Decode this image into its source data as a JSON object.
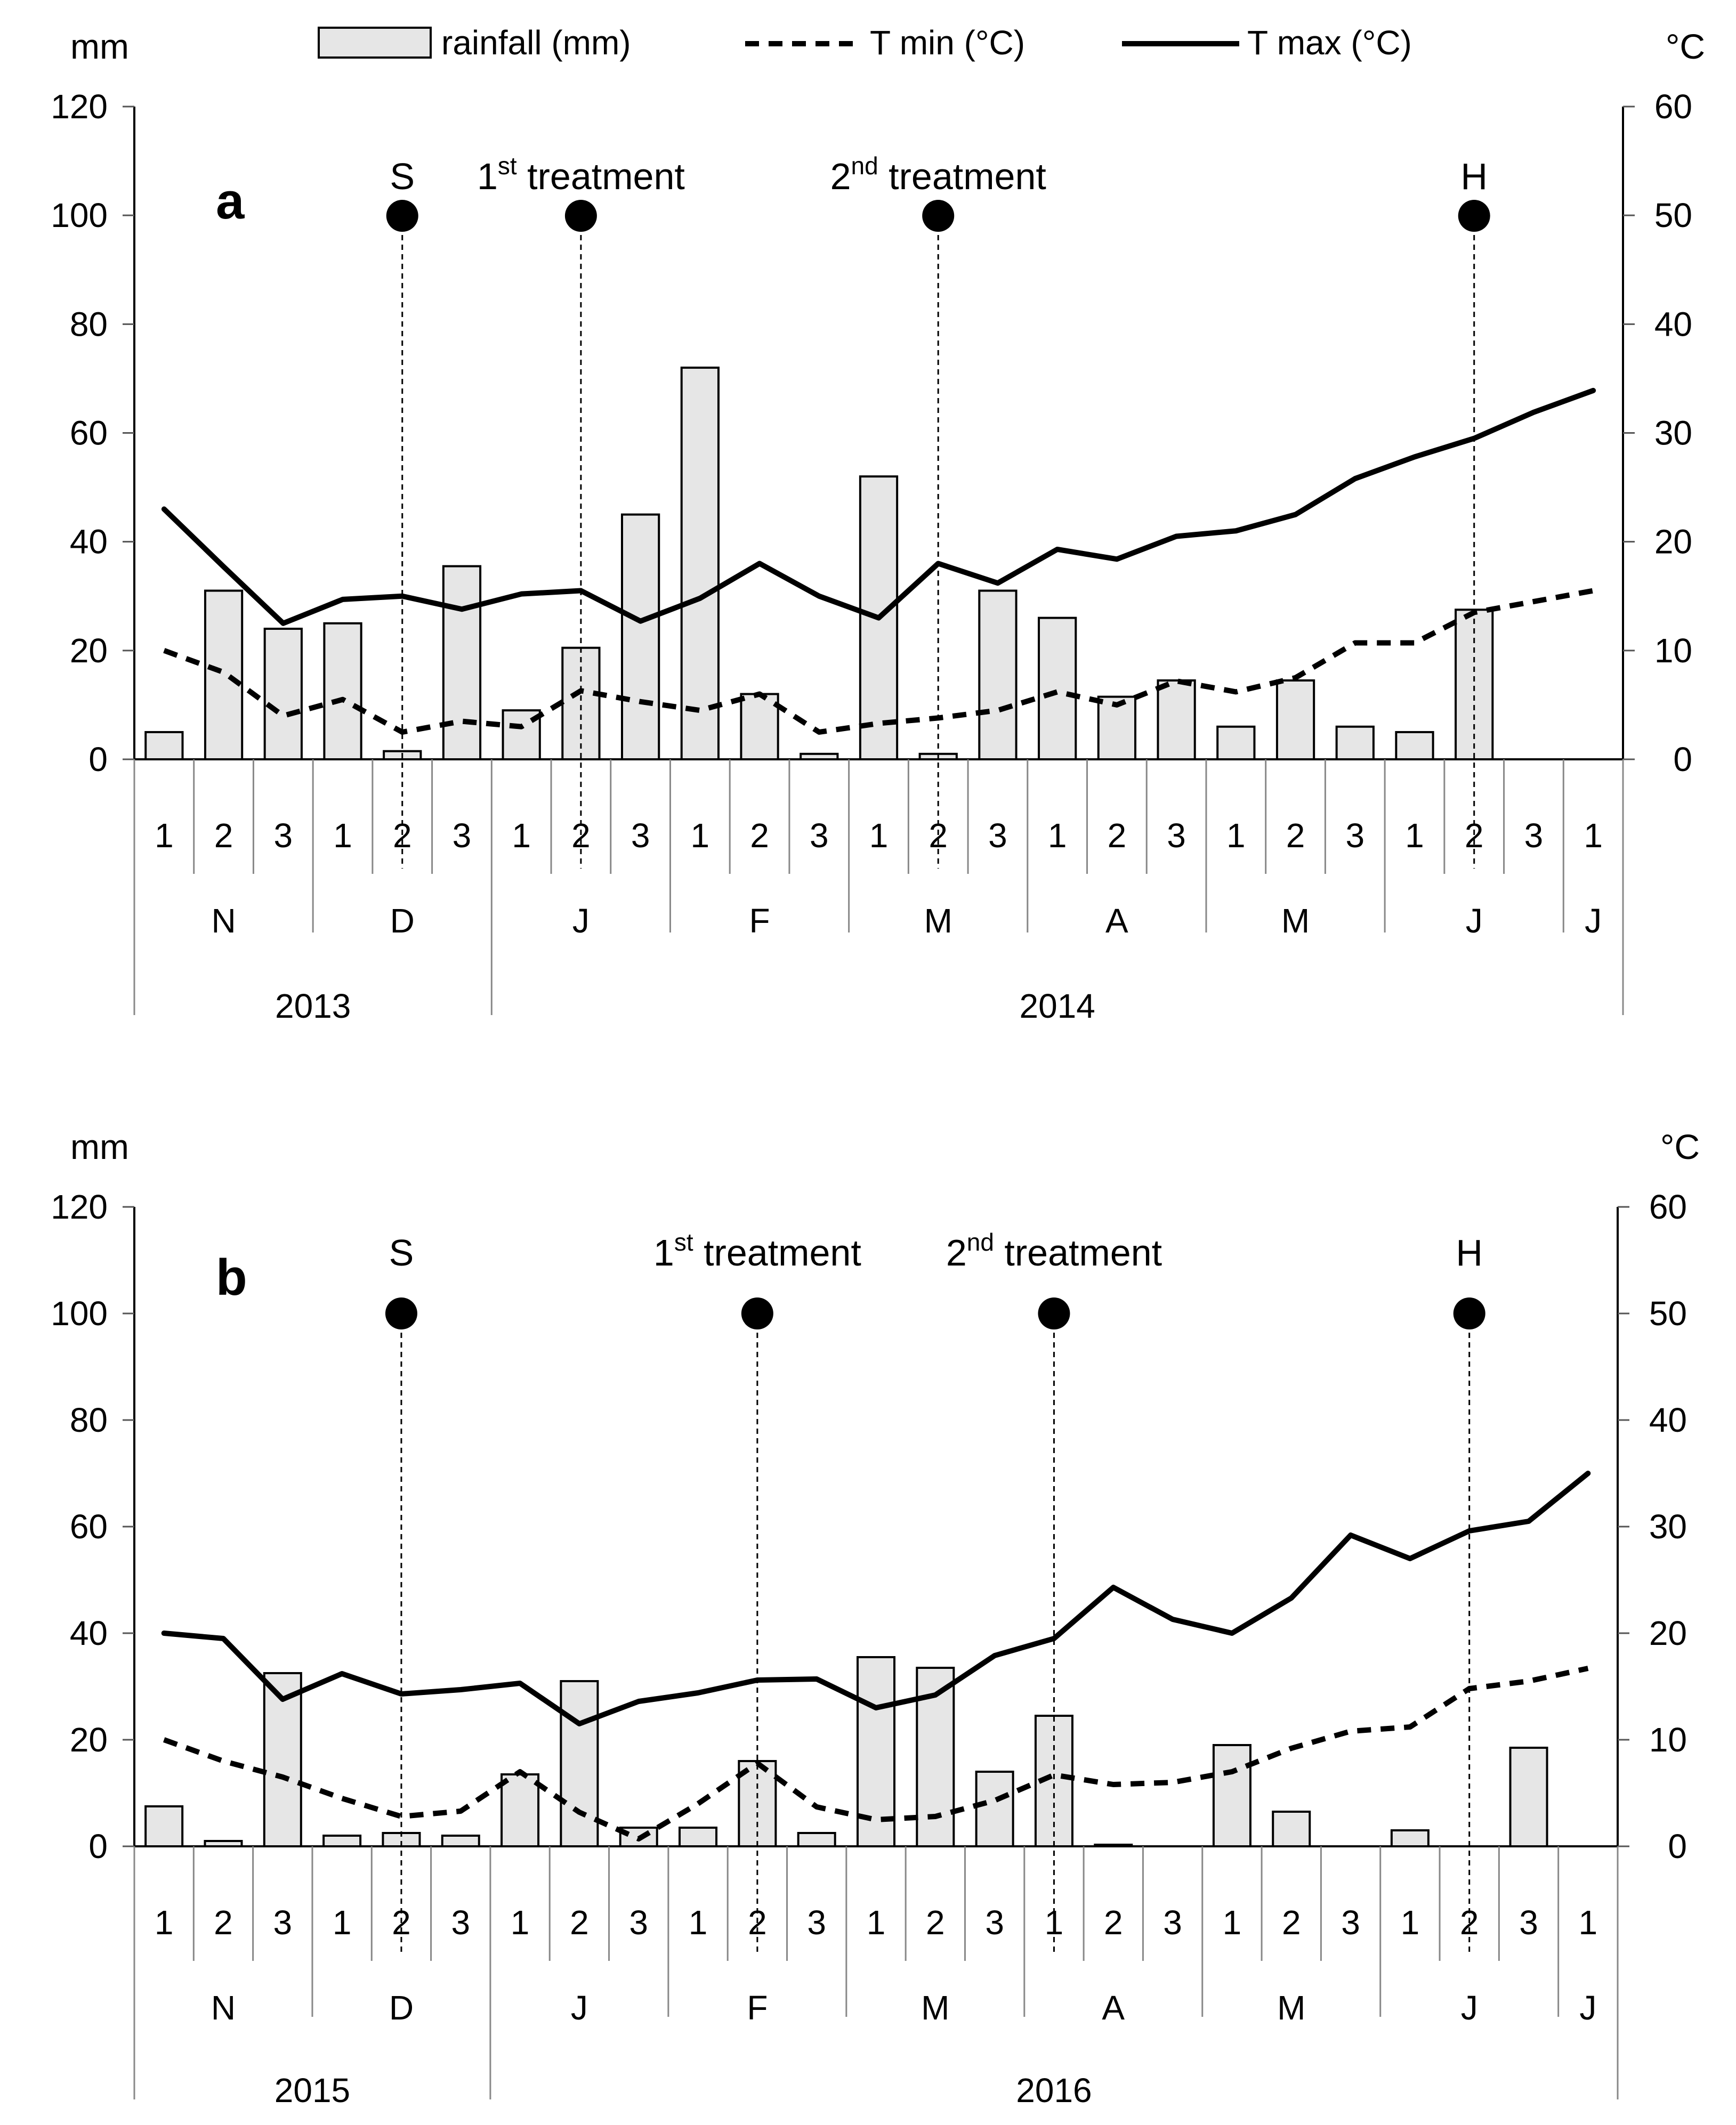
{
  "legend": {
    "rainfall": "rainfall (mm)",
    "tmin": "T min (°C)",
    "tmax": "T max (°C)"
  },
  "chart_data": [
    {
      "type": "bar",
      "panel": "a",
      "left_unit": "mm",
      "right_unit": "°C",
      "left_ticks": [
        "0",
        "20",
        "40",
        "60",
        "80",
        "100",
        "120"
      ],
      "right_ticks": [
        "0",
        "10",
        "20",
        "30",
        "40",
        "50",
        "60"
      ],
      "ylim_left": [
        0,
        120
      ],
      "ylim_right": [
        0,
        60
      ],
      "decades": [
        "1",
        "2",
        "3",
        "1",
        "2",
        "3",
        "1",
        "2",
        "3",
        "1",
        "2",
        "3",
        "1",
        "2",
        "3",
        "1",
        "2",
        "3",
        "1",
        "2",
        "3",
        "1",
        "2",
        "3",
        "1"
      ],
      "months": [
        {
          "label": "N",
          "span": 3
        },
        {
          "label": "D",
          "span": 3
        },
        {
          "label": "J",
          "span": 3
        },
        {
          "label": "F",
          "span": 3
        },
        {
          "label": "M",
          "span": 3
        },
        {
          "label": "A",
          "span": 3
        },
        {
          "label": "M",
          "span": 3
        },
        {
          "label": "J",
          "span": 3
        },
        {
          "label": "J",
          "span": 1
        }
      ],
      "years": [
        {
          "label": "2013",
          "span": 6
        },
        {
          "label": "2014",
          "span": 19
        }
      ],
      "series": [
        {
          "name": "rainfall (mm)",
          "axis": "left",
          "values": [
            5,
            31,
            24,
            25,
            1.5,
            35.5,
            9,
            20.5,
            45,
            72,
            12,
            1,
            52,
            1,
            31,
            26,
            11.5,
            14.5,
            6,
            14.5,
            6,
            5,
            27.5,
            null,
            null
          ]
        },
        {
          "name": "T min (°C)",
          "axis": "right",
          "values": [
            10,
            8,
            4,
            5.5,
            2.5,
            3.5,
            3,
            6.3,
            5.3,
            4.5,
            6,
            2.5,
            3.3,
            3.8,
            4.5,
            6.2,
            5,
            7.2,
            6.2,
            7.5,
            10.7,
            10.7,
            13.5,
            14.5,
            15.5
          ]
        },
        {
          "name": "T max (°C)",
          "axis": "right",
          "values": [
            23,
            17.7,
            12.5,
            14.7,
            15,
            13.8,
            15.2,
            15.5,
            12.7,
            14.8,
            18,
            15,
            13,
            18,
            16.2,
            19.3,
            18.4,
            20.5,
            21,
            22.5,
            25.8,
            27.8,
            29.5,
            31.9,
            33.9
          ]
        }
      ],
      "events": [
        {
          "index": 4,
          "label_main": "S",
          "label_sup": "",
          "label_rest": ""
        },
        {
          "index": 7,
          "label_main": "1",
          "label_sup": "st",
          "label_rest": " treatment"
        },
        {
          "index": 13,
          "label_main": "2",
          "label_sup": "nd",
          "label_rest": " treatment"
        },
        {
          "index": 22,
          "label_main": "H",
          "label_sup": "",
          "label_rest": ""
        }
      ]
    },
    {
      "type": "bar",
      "panel": "b",
      "left_unit": "mm",
      "right_unit": "°C",
      "left_ticks": [
        "0",
        "20",
        "40",
        "60",
        "80",
        "100",
        "120"
      ],
      "right_ticks": [
        "0",
        "10",
        "20",
        "30",
        "40",
        "50",
        "60"
      ],
      "ylim_left": [
        0,
        120
      ],
      "ylim_right": [
        0,
        60
      ],
      "decades": [
        "1",
        "2",
        "3",
        "1",
        "2",
        "3",
        "1",
        "2",
        "3",
        "1",
        "2",
        "3",
        "1",
        "2",
        "3",
        "1",
        "2",
        "3",
        "1",
        "2",
        "3",
        "1",
        "2",
        "3",
        "1"
      ],
      "months": [
        {
          "label": "N",
          "span": 3
        },
        {
          "label": "D",
          "span": 3
        },
        {
          "label": "J",
          "span": 3
        },
        {
          "label": "F",
          "span": 3
        },
        {
          "label": "M",
          "span": 3
        },
        {
          "label": "A",
          "span": 3
        },
        {
          "label": "M",
          "span": 3
        },
        {
          "label": "J",
          "span": 3
        },
        {
          "label": "J",
          "span": 1
        }
      ],
      "years": [
        {
          "label": "2015",
          "span": 6
        },
        {
          "label": "2016",
          "span": 19
        }
      ],
      "series": [
        {
          "name": "rainfall (mm)",
          "axis": "left",
          "values": [
            7.5,
            1,
            32.5,
            2,
            2.5,
            2,
            13.5,
            31,
            3.5,
            3.5,
            16,
            2.5,
            35.5,
            33.5,
            14,
            24.5,
            0.3,
            null,
            19,
            6.5,
            null,
            3,
            null,
            18.5,
            null
          ]
        },
        {
          "name": "T min (°C)",
          "axis": "right",
          "values": [
            10,
            8,
            6.5,
            4.5,
            2.8,
            3.3,
            7,
            3.2,
            0.7,
            4,
            7.8,
            3.7,
            2.5,
            2.8,
            4.3,
            6.7,
            5.8,
            6,
            7,
            9.2,
            10.8,
            11.2,
            14.8,
            15.5,
            16.7
          ]
        },
        {
          "name": "T max (°C)",
          "axis": "right",
          "values": [
            20,
            19.5,
            13.8,
            16.2,
            14.3,
            14.7,
            15.3,
            11.5,
            13.6,
            14.4,
            15.6,
            15.7,
            13,
            14.2,
            17.9,
            19.5,
            24.3,
            21.3,
            20,
            23.3,
            29.2,
            27,
            29.6,
            30.5,
            35
          ]
        }
      ],
      "events": [
        {
          "index": 4,
          "label_main": "S",
          "label_sup": "",
          "label_rest": ""
        },
        {
          "index": 10,
          "label_main": "1",
          "label_sup": "st",
          "label_rest": " treatment"
        },
        {
          "index": 15,
          "label_main": "2",
          "label_sup": "nd",
          "label_rest": " treatment"
        },
        {
          "index": 22,
          "label_main": "H",
          "label_sup": "",
          "label_rest": ""
        }
      ]
    }
  ]
}
